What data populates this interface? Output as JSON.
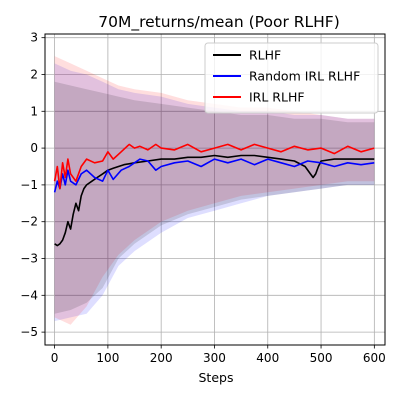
{
  "chart_data": {
    "type": "line",
    "title": "70M_returns/mean (Poor RLHF)",
    "xlabel": "Steps",
    "ylabel": "",
    "xlim": [
      -18,
      620
    ],
    "ylim": [
      -5.35,
      3.1
    ],
    "xticks": [
      0,
      100,
      200,
      300,
      400,
      500,
      600
    ],
    "yticks": [
      -5,
      -4,
      -3,
      -2,
      -1,
      0,
      1,
      2,
      3
    ],
    "grid": true,
    "legend_position": "top-right",
    "series": [
      {
        "name": "RLHF",
        "color": "#000000",
        "x": [
          0,
          5,
          10,
          15,
          20,
          25,
          30,
          35,
          40,
          45,
          50,
          55,
          60,
          70,
          80,
          90,
          100,
          110,
          120,
          130,
          150,
          175,
          200,
          225,
          250,
          275,
          300,
          325,
          350,
          375,
          400,
          425,
          450,
          470,
          480,
          485,
          490,
          495,
          500,
          525,
          550,
          575,
          600
        ],
        "y": [
          -2.6,
          -2.65,
          -2.6,
          -2.5,
          -2.3,
          -2.0,
          -2.2,
          -1.8,
          -1.5,
          -1.7,
          -1.3,
          -1.1,
          -1.0,
          -0.9,
          -0.8,
          -0.7,
          -0.6,
          -0.55,
          -0.5,
          -0.45,
          -0.4,
          -0.35,
          -0.3,
          -0.3,
          -0.25,
          -0.25,
          -0.2,
          -0.25,
          -0.2,
          -0.2,
          -0.25,
          -0.3,
          -0.35,
          -0.5,
          -0.7,
          -0.8,
          -0.7,
          -0.5,
          -0.35,
          -0.3,
          -0.3,
          -0.3,
          -0.3
        ]
      },
      {
        "name": "Random IRL RLHF",
        "color": "#0000ff",
        "x": [
          0,
          5,
          10,
          15,
          20,
          25,
          30,
          40,
          50,
          60,
          75,
          90,
          100,
          110,
          125,
          140,
          150,
          160,
          175,
          190,
          200,
          225,
          250,
          275,
          300,
          325,
          350,
          375,
          400,
          425,
          450,
          475,
          500,
          525,
          550,
          575,
          600
        ],
        "y": [
          -1.2,
          -0.9,
          -1.1,
          -0.7,
          -1.0,
          -0.6,
          -0.9,
          -1.0,
          -0.7,
          -0.6,
          -0.8,
          -0.9,
          -0.6,
          -0.85,
          -0.6,
          -0.5,
          -0.4,
          -0.3,
          -0.35,
          -0.6,
          -0.5,
          -0.4,
          -0.35,
          -0.5,
          -0.3,
          -0.4,
          -0.3,
          -0.45,
          -0.3,
          -0.4,
          -0.5,
          -0.35,
          -0.4,
          -0.5,
          -0.4,
          -0.45,
          -0.4
        ]
      },
      {
        "name": "IRL RLHF",
        "color": "#ff0000",
        "x": [
          0,
          5,
          10,
          15,
          20,
          25,
          30,
          40,
          50,
          60,
          75,
          90,
          100,
          110,
          125,
          140,
          150,
          160,
          175,
          190,
          200,
          225,
          250,
          275,
          300,
          325,
          350,
          375,
          400,
          425,
          450,
          475,
          500,
          525,
          550,
          575,
          600
        ],
        "y": [
          -0.9,
          -0.5,
          -1.1,
          -0.4,
          -0.8,
          -0.3,
          -0.7,
          -0.9,
          -0.5,
          -0.3,
          -0.4,
          -0.35,
          -0.1,
          -0.3,
          -0.1,
          0.1,
          0.0,
          0.05,
          -0.05,
          0.1,
          0.0,
          -0.05,
          0.1,
          -0.1,
          0.0,
          0.1,
          -0.05,
          0.1,
          0.0,
          -0.1,
          0.05,
          -0.05,
          0.0,
          -0.15,
          0.05,
          -0.1,
          0.0
        ]
      }
    ],
    "bands": [
      {
        "series": "Random IRL RLHF",
        "color": "#0000ff",
        "x": [
          0,
          30,
          60,
          90,
          120,
          150,
          200,
          250,
          300,
          350,
          400,
          450,
          500,
          550,
          600
        ],
        "upper": [
          2.3,
          2.1,
          2.0,
          1.8,
          1.6,
          1.5,
          1.4,
          1.2,
          1.1,
          1.0,
          1.0,
          0.9,
          0.9,
          0.8,
          0.8
        ],
        "lower": [
          -4.7,
          -4.6,
          -4.5,
          -4.0,
          -3.2,
          -2.8,
          -2.3,
          -1.9,
          -1.7,
          -1.5,
          -1.3,
          -1.2,
          -1.1,
          -1.0,
          -1.0
        ]
      },
      {
        "series": "IRL RLHF",
        "color": "#ff0000",
        "x": [
          0,
          30,
          60,
          90,
          120,
          150,
          200,
          250,
          300,
          350,
          400,
          450,
          500,
          550,
          600
        ],
        "upper": [
          2.5,
          2.3,
          2.1,
          1.9,
          1.7,
          1.6,
          1.5,
          1.3,
          1.2,
          1.1,
          1.1,
          1.0,
          0.9,
          0.8,
          0.8
        ],
        "lower": [
          -4.6,
          -4.8,
          -4.3,
          -3.5,
          -2.9,
          -2.5,
          -2.0,
          -1.7,
          -1.5,
          -1.3,
          -1.2,
          -1.1,
          -1.0,
          -0.9,
          -0.9
        ]
      },
      {
        "series": "RLHF",
        "color": "#000000",
        "x": [
          0,
          30,
          60,
          90,
          120,
          150,
          200,
          250,
          300,
          350,
          400,
          450,
          500,
          550,
          600
        ],
        "upper": [
          1.8,
          1.7,
          1.6,
          1.5,
          1.4,
          1.3,
          1.2,
          1.1,
          1.0,
          0.9,
          0.9,
          0.8,
          0.8,
          0.7,
          0.7
        ],
        "lower": [
          -4.5,
          -4.4,
          -4.2,
          -3.8,
          -3.0,
          -2.6,
          -2.1,
          -1.8,
          -1.6,
          -1.4,
          -1.3,
          -1.2,
          -1.1,
          -1.0,
          -1.0
        ]
      }
    ]
  }
}
